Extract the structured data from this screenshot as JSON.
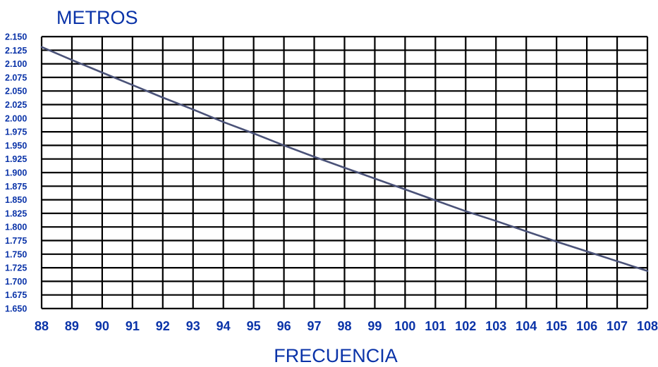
{
  "chart_data": {
    "type": "line",
    "ylabel": "METROS",
    "xlabel": "FRECUENCIA",
    "x_ticks": [
      "88",
      "89",
      "90",
      "91",
      "92",
      "93",
      "94",
      "95",
      "96",
      "97",
      "98",
      "99",
      "100",
      "101",
      "102",
      "103",
      "104",
      "105",
      "106",
      "107",
      "108"
    ],
    "y_ticks": [
      "2.150",
      "2.125",
      "2.100",
      "2.075",
      "2.050",
      "2.025",
      "2.000",
      "1.975",
      "1.950",
      "1.925",
      "1.900",
      "1.875",
      "1.850",
      "1.825",
      "1.800",
      "1.775",
      "1.750",
      "1.725",
      "1.700",
      "1.675",
      "1.650"
    ],
    "xlim": [
      88,
      108
    ],
    "ylim": [
      1.65,
      2.15
    ],
    "grid": true,
    "series": [
      {
        "x": [
          88,
          89,
          90,
          91,
          92,
          93,
          94,
          95,
          96,
          97,
          98,
          99,
          100,
          101,
          102,
          103,
          104,
          105,
          106,
          107,
          108
        ],
        "y": [
          2.131,
          2.107,
          2.084,
          2.061,
          2.038,
          2.016,
          1.993,
          1.972,
          1.95,
          1.929,
          1.909,
          1.889,
          1.869,
          1.849,
          1.829,
          1.811,
          1.792,
          1.773,
          1.755,
          1.737,
          1.719
        ]
      }
    ],
    "colors": {
      "grid": "#000000",
      "line": "#4a5278",
      "labels": "#0a33a8"
    }
  }
}
